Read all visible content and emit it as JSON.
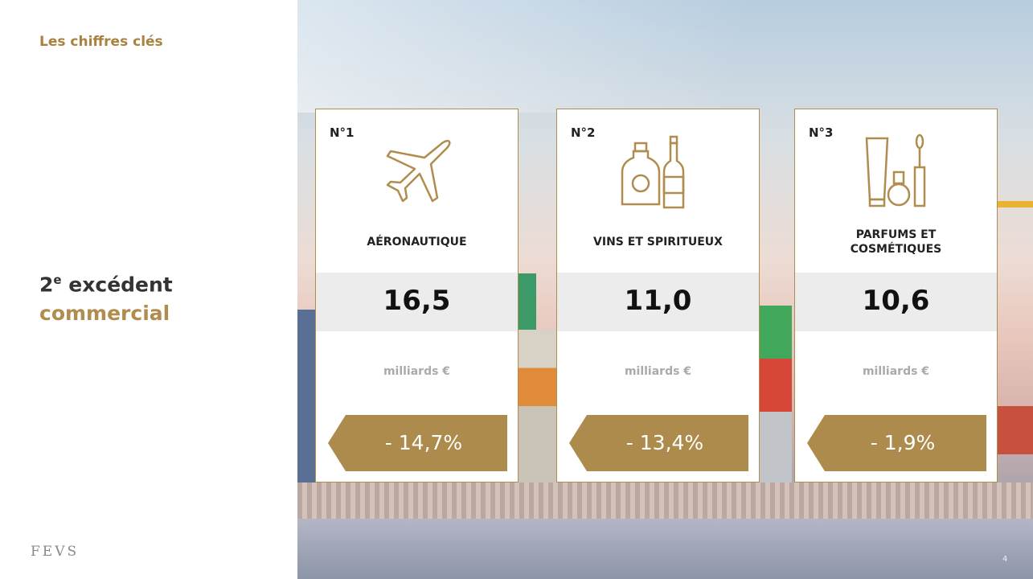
{
  "header": {
    "title": "Les chiffres clés"
  },
  "headline": {
    "number": "2",
    "superscript": "e",
    "line1": " excédent",
    "line2": "commercial"
  },
  "cards": [
    {
      "rank": "N°1",
      "label": "AÉRONAUTIQUE",
      "value": "16,5",
      "unit": "milliards €",
      "change": "- 14,7%"
    },
    {
      "rank": "N°2",
      "label": "VINS ET SPIRITUEUX",
      "value": "11,0",
      "unit": "milliards €",
      "change": "- 13,4%"
    },
    {
      "rank": "N°3",
      "label": "PARFUMS ET COSMÉTIQUES",
      "value": "10,6",
      "unit": "milliards €",
      "change": "- 1,9%"
    }
  ],
  "footer": {
    "logo": "FEVS",
    "page": "4"
  }
}
